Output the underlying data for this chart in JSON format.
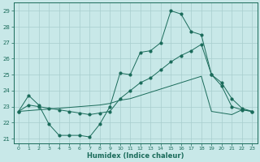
{
  "xlabel": "Humidex (Indice chaleur)",
  "bg_color": "#c8e8e8",
  "grid_color": "#a8cece",
  "line_color": "#1a6b5a",
  "xlim": [
    -0.5,
    23.5
  ],
  "ylim": [
    20.7,
    29.5
  ],
  "yticks": [
    21,
    22,
    23,
    24,
    25,
    26,
    27,
    28,
    29
  ],
  "xticks": [
    0,
    1,
    2,
    3,
    4,
    5,
    6,
    7,
    8,
    9,
    10,
    11,
    12,
    13,
    14,
    15,
    16,
    17,
    18,
    19,
    20,
    21,
    22,
    23
  ],
  "series1_x": [
    0,
    1,
    2,
    3,
    4,
    5,
    6,
    7,
    8,
    9,
    10,
    11,
    12,
    13,
    14,
    15,
    16,
    17,
    18,
    19,
    20,
    21,
    22,
    23
  ],
  "series1_y": [
    22.7,
    23.7,
    23.1,
    21.9,
    21.2,
    21.2,
    21.2,
    21.1,
    21.9,
    23.0,
    25.1,
    25.0,
    26.4,
    26.5,
    27.0,
    29.0,
    28.8,
    27.7,
    27.5,
    25.0,
    24.3,
    23.0,
    22.8,
    22.7
  ],
  "series2_x": [
    0,
    1,
    2,
    3,
    4,
    5,
    6,
    7,
    8,
    9,
    10,
    11,
    12,
    13,
    14,
    15,
    16,
    17,
    18,
    19,
    20,
    21,
    22,
    23
  ],
  "series2_y": [
    22.7,
    23.1,
    23.0,
    22.9,
    22.8,
    22.7,
    22.6,
    22.5,
    22.6,
    22.7,
    23.5,
    24.0,
    24.5,
    24.8,
    25.3,
    25.8,
    26.2,
    26.5,
    26.9,
    25.0,
    24.5,
    23.5,
    22.9,
    22.7
  ],
  "series3_x": [
    0,
    1,
    2,
    3,
    4,
    5,
    6,
    7,
    8,
    9,
    10,
    11,
    12,
    13,
    14,
    15,
    16,
    17,
    18,
    19,
    20,
    21,
    22,
    23
  ],
  "series3_y": [
    22.7,
    22.75,
    22.8,
    22.85,
    22.9,
    22.95,
    23.0,
    23.05,
    23.1,
    23.2,
    23.4,
    23.5,
    23.7,
    23.9,
    24.1,
    24.3,
    24.5,
    24.7,
    24.9,
    22.7,
    22.6,
    22.5,
    22.8,
    22.7
  ]
}
